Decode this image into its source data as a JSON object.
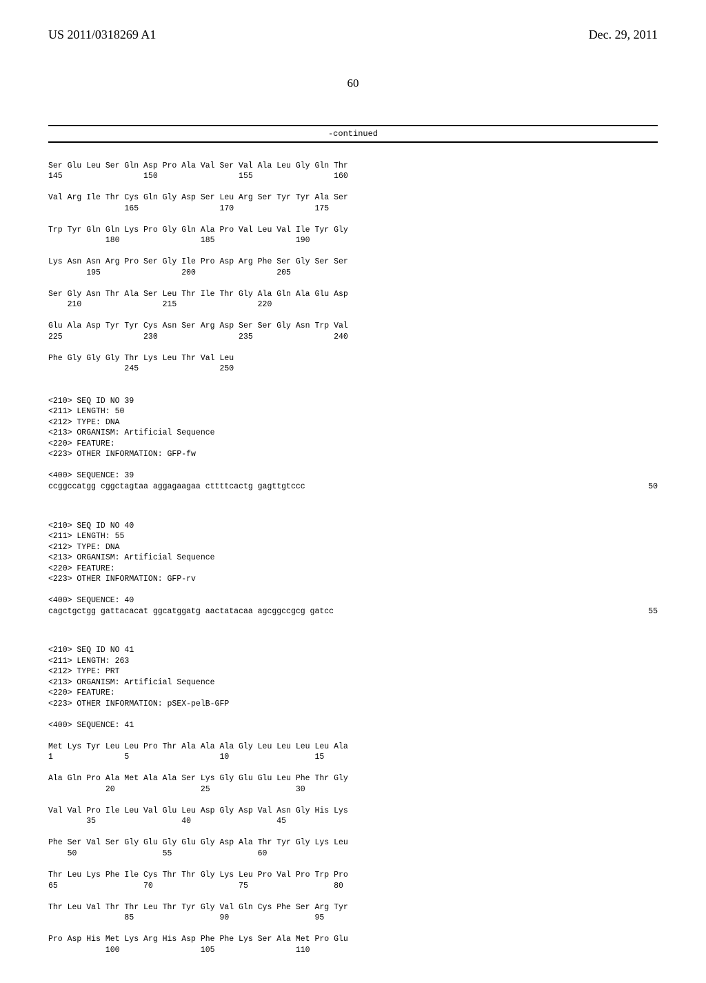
{
  "header": {
    "patent_number": "US 2011/0318269 A1",
    "patent_date": "Dec. 29, 2011",
    "page_number": "60"
  },
  "continued_label": "-continued",
  "protein_block_1": {
    "rows": [
      {
        "residues": "Ser Glu Leu Ser Gln Asp Pro Ala Val Ser Val Ala Leu Gly Gln Thr",
        "positions": "145                 150                 155                 160"
      },
      {
        "residues": "Val Arg Ile Thr Cys Gln Gly Asp Ser Leu Arg Ser Tyr Tyr Ala Ser",
        "positions": "                165                 170                 175"
      },
      {
        "residues": "Trp Tyr Gln Gln Lys Pro Gly Gln Ala Pro Val Leu Val Ile Tyr Gly",
        "positions": "            180                 185                 190"
      },
      {
        "residues": "Lys Asn Asn Arg Pro Ser Gly Ile Pro Asp Arg Phe Ser Gly Ser Ser",
        "positions": "        195                 200                 205"
      },
      {
        "residues": "Ser Gly Asn Thr Ala Ser Leu Thr Ile Thr Gly Ala Gln Ala Glu Asp",
        "positions": "    210                 215                 220"
      },
      {
        "residues": "Glu Ala Asp Tyr Tyr Cys Asn Ser Arg Asp Ser Ser Gly Asn Trp Val",
        "positions": "225                 230                 235                 240"
      },
      {
        "residues": "Phe Gly Gly Gly Thr Lys Leu Thr Val Leu",
        "positions": "                245                 250"
      }
    ]
  },
  "seq39": {
    "headers": [
      "<210> SEQ ID NO 39",
      "<211> LENGTH: 50",
      "<212> TYPE: DNA",
      "<213> ORGANISM: Artificial Sequence",
      "<220> FEATURE:",
      "<223> OTHER INFORMATION: GFP-fw"
    ],
    "sequence_label": "<400> SEQUENCE: 39",
    "sequence": "ccggccatgg cggctagtaa aggagaagaa cttttcactg gagttgtccc",
    "length": "50"
  },
  "seq40": {
    "headers": [
      "<210> SEQ ID NO 40",
      "<211> LENGTH: 55",
      "<212> TYPE: DNA",
      "<213> ORGANISM: Artificial Sequence",
      "<220> FEATURE:",
      "<223> OTHER INFORMATION: GFP-rv"
    ],
    "sequence_label": "<400> SEQUENCE: 40",
    "sequence": "cagctgctgg gattacacat ggcatggatg aactatacaa agcggccgcg gatcc",
    "length": "55"
  },
  "seq41": {
    "headers": [
      "<210> SEQ ID NO 41",
      "<211> LENGTH: 263",
      "<212> TYPE: PRT",
      "<213> ORGANISM: Artificial Sequence",
      "<220> FEATURE:",
      "<223> OTHER INFORMATION: pSEX-pelB-GFP"
    ],
    "sequence_label": "<400> SEQUENCE: 41",
    "rows": [
      {
        "residues": "Met Lys Tyr Leu Leu Pro Thr Ala Ala Ala Gly Leu Leu Leu Leu Ala",
        "positions": "1               5                   10                  15"
      },
      {
        "residues": "Ala Gln Pro Ala Met Ala Ala Ser Lys Gly Glu Glu Leu Phe Thr Gly",
        "positions": "            20                  25                  30"
      },
      {
        "residues": "Val Val Pro Ile Leu Val Glu Leu Asp Gly Asp Val Asn Gly His Lys",
        "positions": "        35                  40                  45"
      },
      {
        "residues": "Phe Ser Val Ser Gly Glu Gly Glu Gly Asp Ala Thr Tyr Gly Lys Leu",
        "positions": "    50                  55                  60"
      },
      {
        "residues": "Thr Leu Lys Phe Ile Cys Thr Thr Gly Lys Leu Pro Val Pro Trp Pro",
        "positions": "65                  70                  75                  80"
      },
      {
        "residues": "Thr Leu Val Thr Thr Leu Thr Tyr Gly Val Gln Cys Phe Ser Arg Tyr",
        "positions": "                85                  90                  95"
      },
      {
        "residues": "Pro Asp His Met Lys Arg His Asp Phe Phe Lys Ser Ala Met Pro Glu",
        "positions": "            100                 105                 110"
      }
    ]
  }
}
